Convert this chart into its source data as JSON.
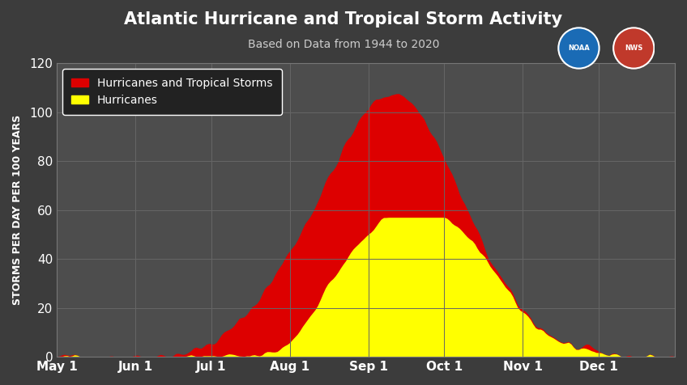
{
  "title": "Atlantic Hurricane and Tropical Storm Activity",
  "subtitle": "Based on Data from 1944 to 2020",
  "ylabel": "STORMS PER DAY PER 100 YEARS",
  "background_color": "#3c3c3c",
  "plot_bg_color": "#4d4d4d",
  "grid_color": "#666666",
  "title_color": "#ffffff",
  "subtitle_color": "#cccccc",
  "ylabel_color": "#ffffff",
  "tick_color": "#ffffff",
  "ylim": [
    0,
    120
  ],
  "yticks": [
    0,
    20,
    40,
    60,
    80,
    100,
    120
  ],
  "x_labels": [
    "May 1",
    "Jun 1",
    "Jul 1",
    "Aug 1",
    "Sep 1",
    "Oct 1",
    "Nov 1",
    "Dec 1"
  ],
  "month_days": [
    0,
    31,
    61,
    92,
    123,
    153,
    184,
    214
  ],
  "total_days": 245,
  "legend_labels": [
    "Hurricanes and Tropical Storms",
    "Hurricanes"
  ],
  "legend_colors": [
    "#dd0000",
    "#ffff00"
  ],
  "total_storm_color": "#dd0000",
  "hurricane_color": "#ffff00"
}
